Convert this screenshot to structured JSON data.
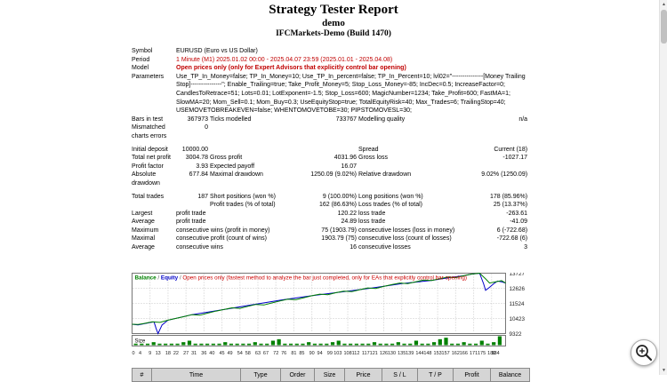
{
  "header": {
    "title": "Strategy Tester Report",
    "expert": "demo",
    "server": "IFCMarkets-Demo (Build 1470)"
  },
  "report": {
    "rows": [
      [
        {
          "t": "Symbol"
        },
        {
          "t": "EURUSD (Euro vs US Dollar)",
          "cs": 5
        }
      ],
      [
        {
          "t": "Period"
        },
        {
          "t": "1 Minute (M1) 2025.01.02 00:00 - 2025.04.07 23:59 (2025.01.01 - 2025.04.08)",
          "cs": 5,
          "c": "red"
        }
      ],
      [
        {
          "t": "Model"
        },
        {
          "t": "Open prices only (only for Expert Advisors that explicitly control bar opening)",
          "cs": 5,
          "c": "red b"
        }
      ],
      [
        {
          "t": "Parameters"
        },
        {
          "t": "Use_TP_In_Money=false; TP_In_Money=10; Use_TP_In_percent=false; TP_In_Percent=10; lvl02=\"---------------[Money Trailing Stop]---------------\"; Enable_Trailing=true; Take_Profit_Money=5; Stop_Loss_Money=-85; IncDec=0.5; IncreaseFactor=0; CandlesToRetrace=51; Lots=0.01; LotExponent=-1.5; Stop_Loss=600; MagicNumber=1234; Take_Profit=600; FastMA=1; SlowMA=20; Mom_Sell=0.1; Mom_Buy=0.3; UseEquityStop=true; TotalEquityRisk=40; Max_Trades=6; TrailingStop=40; USEMOVETOBREAKEVEN=false; WHENTOMOVETOBE=30; PIPSTOMOVESL=30;",
          "cs": 5
        }
      ],
      [
        {
          "t": "Bars in test"
        },
        {
          "t": "367973",
          "al": "r"
        },
        {
          "t": "Ticks modelled"
        },
        {
          "t": "733767",
          "al": "r"
        },
        {
          "t": "Modelling quality"
        },
        {
          "t": "n/a",
          "al": "r"
        }
      ],
      [
        {
          "t": "Mismatched charts errors"
        },
        {
          "t": "0",
          "al": "r"
        },
        {
          "t": "",
          "cs": 4
        }
      ],
      [],
      [
        {
          "t": "Initial deposit"
        },
        {
          "t": "10000.00",
          "al": "r"
        },
        {
          "t": "",
          "cs": 2
        },
        {
          "t": "Spread"
        },
        {
          "t": "Current (18)",
          "al": "r"
        }
      ],
      [
        {
          "t": "Total net profit"
        },
        {
          "t": "3004.78",
          "al": "r"
        },
        {
          "t": "Gross profit"
        },
        {
          "t": "4031.96",
          "al": "r"
        },
        {
          "t": "Gross loss"
        },
        {
          "t": "-1027.17",
          "al": "r"
        }
      ],
      [
        {
          "t": "Profit factor"
        },
        {
          "t": "3.93",
          "al": "r"
        },
        {
          "t": "Expected payoff"
        },
        {
          "t": "16.07",
          "al": "r"
        },
        {
          "t": ""
        },
        {
          "t": ""
        }
      ],
      [
        {
          "t": "Absolute drawdown"
        },
        {
          "t": "677.84",
          "al": "r"
        },
        {
          "t": "Maximal drawdown"
        },
        {
          "t": "1250.09 (9.02%)",
          "al": "r"
        },
        {
          "t": "Relative drawdown"
        },
        {
          "t": "9.02% (1250.09)",
          "al": "r"
        }
      ],
      [],
      [
        {
          "t": "Total trades"
        },
        {
          "t": "187",
          "al": "r"
        },
        {
          "t": "Short positions (won %)"
        },
        {
          "t": "9 (100.00%)",
          "al": "r"
        },
        {
          "t": "Long positions (won %)"
        },
        {
          "t": "178 (85.96%)",
          "al": "r"
        }
      ],
      [
        {
          "t": ""
        },
        {
          "t": ""
        },
        {
          "t": "Profit trades (% of total)"
        },
        {
          "t": "162 (86.63%)",
          "al": "r"
        },
        {
          "t": "Loss trades (% of total)"
        },
        {
          "t": "25 (13.37%)",
          "al": "r"
        }
      ],
      [
        {
          "t": "Largest"
        },
        {
          "t": "profit trade",
          "cs": 2
        },
        {
          "t": "120.22",
          "al": "r"
        },
        {
          "t": "loss trade"
        },
        {
          "t": "-263.61",
          "al": "r"
        }
      ],
      [
        {
          "t": "Average"
        },
        {
          "t": "profit trade",
          "cs": 2
        },
        {
          "t": "24.89",
          "al": "r"
        },
        {
          "t": "loss trade"
        },
        {
          "t": "-41.09",
          "al": "r"
        }
      ],
      [
        {
          "t": "Maximum"
        },
        {
          "t": "consecutive wins (profit in money)",
          "cs": 2
        },
        {
          "t": "75 (1903.79)",
          "al": "r"
        },
        {
          "t": "consecutive losses (loss in money)"
        },
        {
          "t": "6 (-722.68)",
          "al": "r"
        }
      ],
      [
        {
          "t": "Maximal"
        },
        {
          "t": "consecutive profit (count of wins)",
          "cs": 2
        },
        {
          "t": "1903.79 (75)",
          "al": "r"
        },
        {
          "t": "consecutive loss (count of losses)"
        },
        {
          "t": "-722.68 (6)",
          "al": "r"
        }
      ],
      [
        {
          "t": "Average"
        },
        {
          "t": "consecutive wins",
          "cs": 2
        },
        {
          "t": "16",
          "al": "r"
        },
        {
          "t": "consecutive losses"
        },
        {
          "t": "3",
          "al": "r"
        }
      ]
    ]
  },
  "chart_data": {
    "type": "line",
    "legend": [
      {
        "label": "Balance",
        "color": "#008000"
      },
      {
        "label": "Equity",
        "color": "#0000c8"
      }
    ],
    "model_note": "Open prices only (fastest method to analyze the bar just completed, only for EAs that explicitly control bar opening)",
    "note_color": "#cc0000",
    "xlim": [
      0,
      187
    ],
    "ylim": [
      9322,
      13727
    ],
    "y_ticks": [
      13727,
      12626,
      11524,
      10423,
      9322
    ],
    "x_ticks": [
      0,
      4,
      9,
      13,
      18,
      22,
      27,
      31,
      36,
      40,
      45,
      49,
      54,
      58,
      63,
      67,
      72,
      76,
      81,
      85,
      90,
      94,
      99,
      103,
      108,
      112,
      117,
      121,
      126,
      130,
      135,
      139,
      144,
      148,
      153,
      157,
      162,
      166,
      171,
      175,
      180,
      184
    ],
    "grid": true,
    "legend_position": "top-left",
    "series": [
      {
        "name": "Balance",
        "color": "#008000",
        "points": [
          [
            0,
            10000
          ],
          [
            3,
            9980
          ],
          [
            6,
            10060
          ],
          [
            10,
            10180
          ],
          [
            14,
            10140
          ],
          [
            18,
            10300
          ],
          [
            22,
            10430
          ],
          [
            26,
            10560
          ],
          [
            30,
            10700
          ],
          [
            34,
            10660
          ],
          [
            38,
            10820
          ],
          [
            42,
            10960
          ],
          [
            46,
            11080
          ],
          [
            50,
            11200
          ],
          [
            54,
            11160
          ],
          [
            58,
            11310
          ],
          [
            62,
            11450
          ],
          [
            66,
            11410
          ],
          [
            70,
            11560
          ],
          [
            74,
            11700
          ],
          [
            78,
            11830
          ],
          [
            82,
            11790
          ],
          [
            86,
            11940
          ],
          [
            90,
            12080
          ],
          [
            94,
            12200
          ],
          [
            98,
            12160
          ],
          [
            102,
            12300
          ],
          [
            106,
            12420
          ],
          [
            110,
            12380
          ],
          [
            114,
            12520
          ],
          [
            118,
            12650
          ],
          [
            122,
            12610
          ],
          [
            126,
            12760
          ],
          [
            130,
            12890
          ],
          [
            134,
            13010
          ],
          [
            138,
            12970
          ],
          [
            142,
            13100
          ],
          [
            146,
            13230
          ],
          [
            150,
            13190
          ],
          [
            154,
            13320
          ],
          [
            158,
            13440
          ],
          [
            162,
            13400
          ],
          [
            166,
            13540
          ],
          [
            170,
            13660
          ],
          [
            174,
            13727
          ],
          [
            177,
            13310
          ],
          [
            179,
            13005
          ],
          [
            182,
            13100
          ],
          [
            185,
            13180
          ],
          [
            187,
            13004.78
          ]
        ]
      },
      {
        "name": "Equity",
        "color": "#0000c8",
        "points": [
          [
            0,
            10000
          ],
          [
            3,
            9960
          ],
          [
            8,
            10100
          ],
          [
            11,
            10180
          ],
          [
            12,
            9700
          ],
          [
            13,
            9322
          ],
          [
            15,
            9950
          ],
          [
            18,
            10300
          ],
          [
            30,
            10700
          ],
          [
            45,
            11050
          ],
          [
            60,
            11420
          ],
          [
            75,
            11780
          ],
          [
            90,
            12080
          ],
          [
            105,
            12360
          ],
          [
            120,
            12640
          ],
          [
            135,
            12960
          ],
          [
            150,
            13200
          ],
          [
            160,
            13430
          ],
          [
            166,
            13540
          ],
          [
            170,
            13660
          ],
          [
            174,
            13720
          ],
          [
            176,
            12950
          ],
          [
            177,
            12477
          ],
          [
            179,
            12700
          ],
          [
            181,
            12950
          ],
          [
            183,
            13150
          ],
          [
            185,
            13100
          ],
          [
            187,
            13004.78
          ]
        ]
      }
    ],
    "size_pane": {
      "label": "Size",
      "color": "#008000",
      "max": 6,
      "bars": [
        1,
        1,
        1,
        2,
        1,
        1,
        1,
        1,
        2,
        3,
        1,
        1,
        1,
        1,
        1,
        2,
        1,
        1,
        1,
        1,
        2,
        1,
        1,
        3,
        4,
        1,
        1,
        1,
        1,
        2,
        1,
        1,
        1,
        2,
        3,
        1,
        1,
        1,
        1,
        1,
        2,
        1,
        1,
        1,
        2,
        1,
        1,
        3,
        1,
        1,
        2,
        4,
        5,
        1,
        1,
        2,
        1,
        1,
        3,
        1,
        2,
        6
      ]
    }
  },
  "trades_table": {
    "headers": [
      "#",
      "Time",
      "Type",
      "Order",
      "Size",
      "Price",
      "S / L",
      "T / P",
      "Profit",
      "Balance"
    ]
  },
  "scrollbar": {
    "up_icon": "▲",
    "down_icon": "▼"
  }
}
